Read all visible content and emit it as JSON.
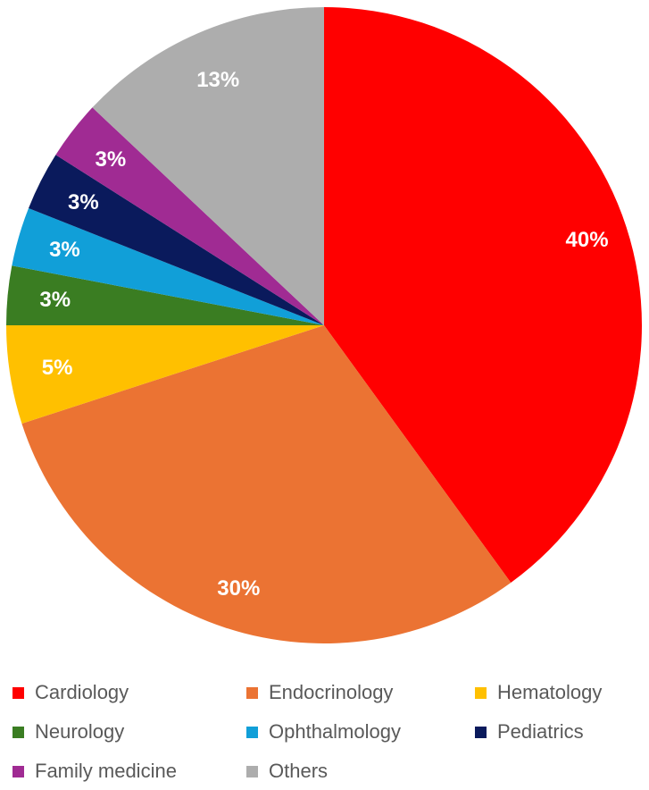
{
  "chart_data": {
    "type": "pie",
    "title": "",
    "legend_position": "bottom",
    "slices": [
      {
        "label": "Cardiology",
        "value": 40,
        "display": "40%",
        "color": "#FF0000"
      },
      {
        "label": "Endocrinology",
        "value": 30,
        "display": "30%",
        "color": "#EB7333"
      },
      {
        "label": "Hematology",
        "value": 5,
        "display": "5%",
        "color": "#FFC000"
      },
      {
        "label": "Neurology",
        "value": 3,
        "display": "3%",
        "color": "#3A7D22"
      },
      {
        "label": "Ophthalmology",
        "value": 3,
        "display": "3%",
        "color": "#119FD8"
      },
      {
        "label": "Pediatrics",
        "value": 3,
        "display": "3%",
        "color": "#0A1A5C"
      },
      {
        "label": "Family medicine",
        "value": 3,
        "display": "3%",
        "color": "#A02B93"
      },
      {
        "label": "Others",
        "value": 13,
        "display": "13%",
        "color": "#ADADAD"
      }
    ]
  }
}
